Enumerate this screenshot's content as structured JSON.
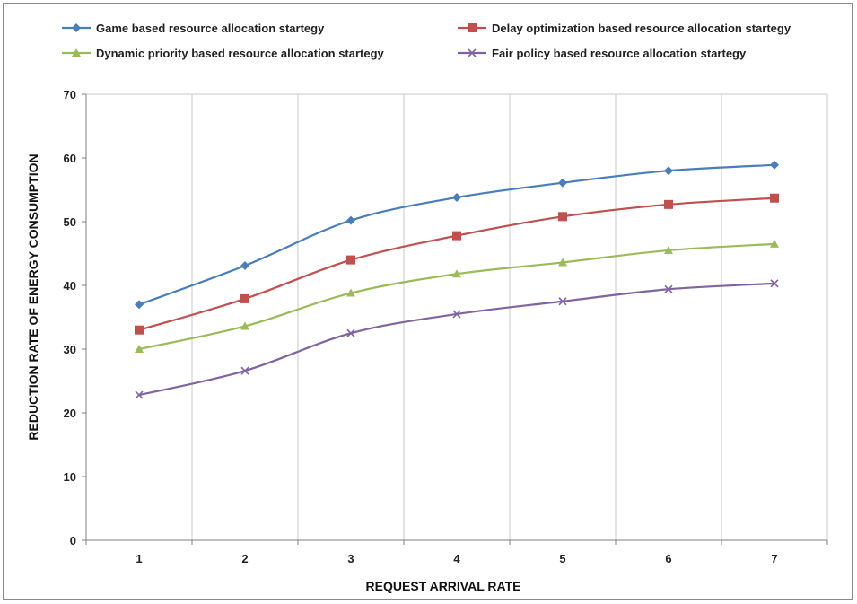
{
  "chart_data": {
    "type": "line",
    "title": "",
    "xlabel": "REQUEST ARRIVAL RATE",
    "ylabel": "REDUCTION RATE OF ENERGY CONSUMPTION",
    "x": [
      1,
      2,
      3,
      4,
      5,
      6,
      7
    ],
    "ylim": [
      0,
      70
    ],
    "yticks": [
      0,
      10,
      20,
      30,
      40,
      50,
      60,
      70
    ],
    "grid": "vertical",
    "legend_position": "top",
    "series": [
      {
        "name": "Game based resource allocation startegy",
        "color": "#4a7ebb",
        "marker": "diamond",
        "values": [
          37.0,
          43.1,
          50.2,
          53.8,
          56.1,
          58.0,
          58.9
        ]
      },
      {
        "name": "Delay optimization based resource allocation startegy",
        "color": "#c0504d",
        "marker": "square",
        "values": [
          33.0,
          37.9,
          44.0,
          47.8,
          50.8,
          52.7,
          53.7
        ]
      },
      {
        "name": "Dynamic priority based resource allocation startegy",
        "color": "#9bbb59",
        "marker": "triangle",
        "values": [
          30.0,
          33.6,
          38.8,
          41.8,
          43.6,
          45.5,
          46.5
        ]
      },
      {
        "name": "Fair policy based resource allocation startegy",
        "color": "#8064a2",
        "marker": "x",
        "values": [
          22.8,
          26.6,
          32.5,
          35.5,
          37.5,
          39.4,
          40.3
        ]
      }
    ]
  }
}
